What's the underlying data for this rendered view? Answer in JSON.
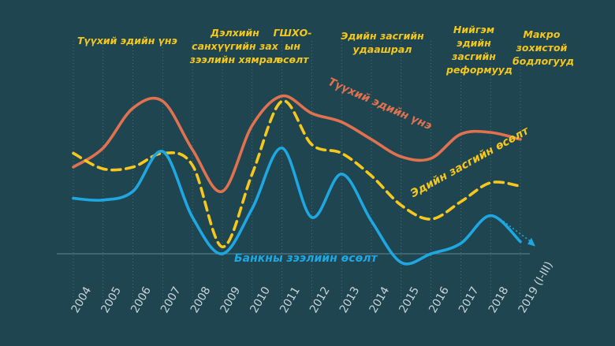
{
  "chart_data": {
    "type": "line",
    "title": "",
    "xlabel": "",
    "ylabel": "",
    "categories": [
      "2004",
      "2005",
      "2006",
      "2007",
      "2008",
      "2009",
      "2010",
      "2011",
      "2012",
      "2013",
      "2014",
      "2015",
      "2016",
      "2017",
      "2018",
      "2019 (I-III)"
    ],
    "annotations": [
      {
        "id": "a1",
        "text": "Түүхий эдийн үнэ"
      },
      {
        "id": "a2",
        "text": "Дэлхийн санхүүгийн зах зээлийн хямрал"
      },
      {
        "id": "a3",
        "text": "ГШХО-ын өсөлт"
      },
      {
        "id": "a4",
        "text": "Эдийн засгийн удаашрал"
      },
      {
        "id": "a5",
        "text": "Нийгэм эдийн засгийн реформууд"
      },
      {
        "id": "a6",
        "text": "Макро зохистой бодлогууд"
      }
    ],
    "series": [
      {
        "name": "Түүхий эдийн үнэ",
        "color": "#e0724f",
        "style": "solid",
        "values": [
          5.0,
          6.1,
          8.4,
          8.8,
          6.0,
          3.6,
          7.4,
          9.1,
          8.1,
          7.6,
          6.6,
          5.6,
          5.5,
          6.9,
          7.0,
          6.6
        ]
      },
      {
        "name": "Эдийн засгийн өсөлт",
        "color": "#f6c71c",
        "style": "dashed",
        "values": [
          5.8,
          4.9,
          5.0,
          5.8,
          5.1,
          0.4,
          4.6,
          8.8,
          6.3,
          5.8,
          4.5,
          2.8,
          2.0,
          3.0,
          4.1,
          3.9
        ]
      },
      {
        "name": "Банкны зээлийн өсөлт",
        "color": "#1fa7e1",
        "style": "solid",
        "values": [
          3.2,
          3.1,
          3.6,
          5.9,
          2.1,
          0.0,
          2.6,
          6.1,
          2.1,
          4.6,
          1.9,
          -0.5,
          0.0,
          0.6,
          2.2,
          0.7
        ]
      }
    ],
    "ylim": [
      -1,
      11
    ],
    "grid": false,
    "legend": "inline",
    "arrow_on_series": "Банкны зээлийн өсөлт"
  }
}
